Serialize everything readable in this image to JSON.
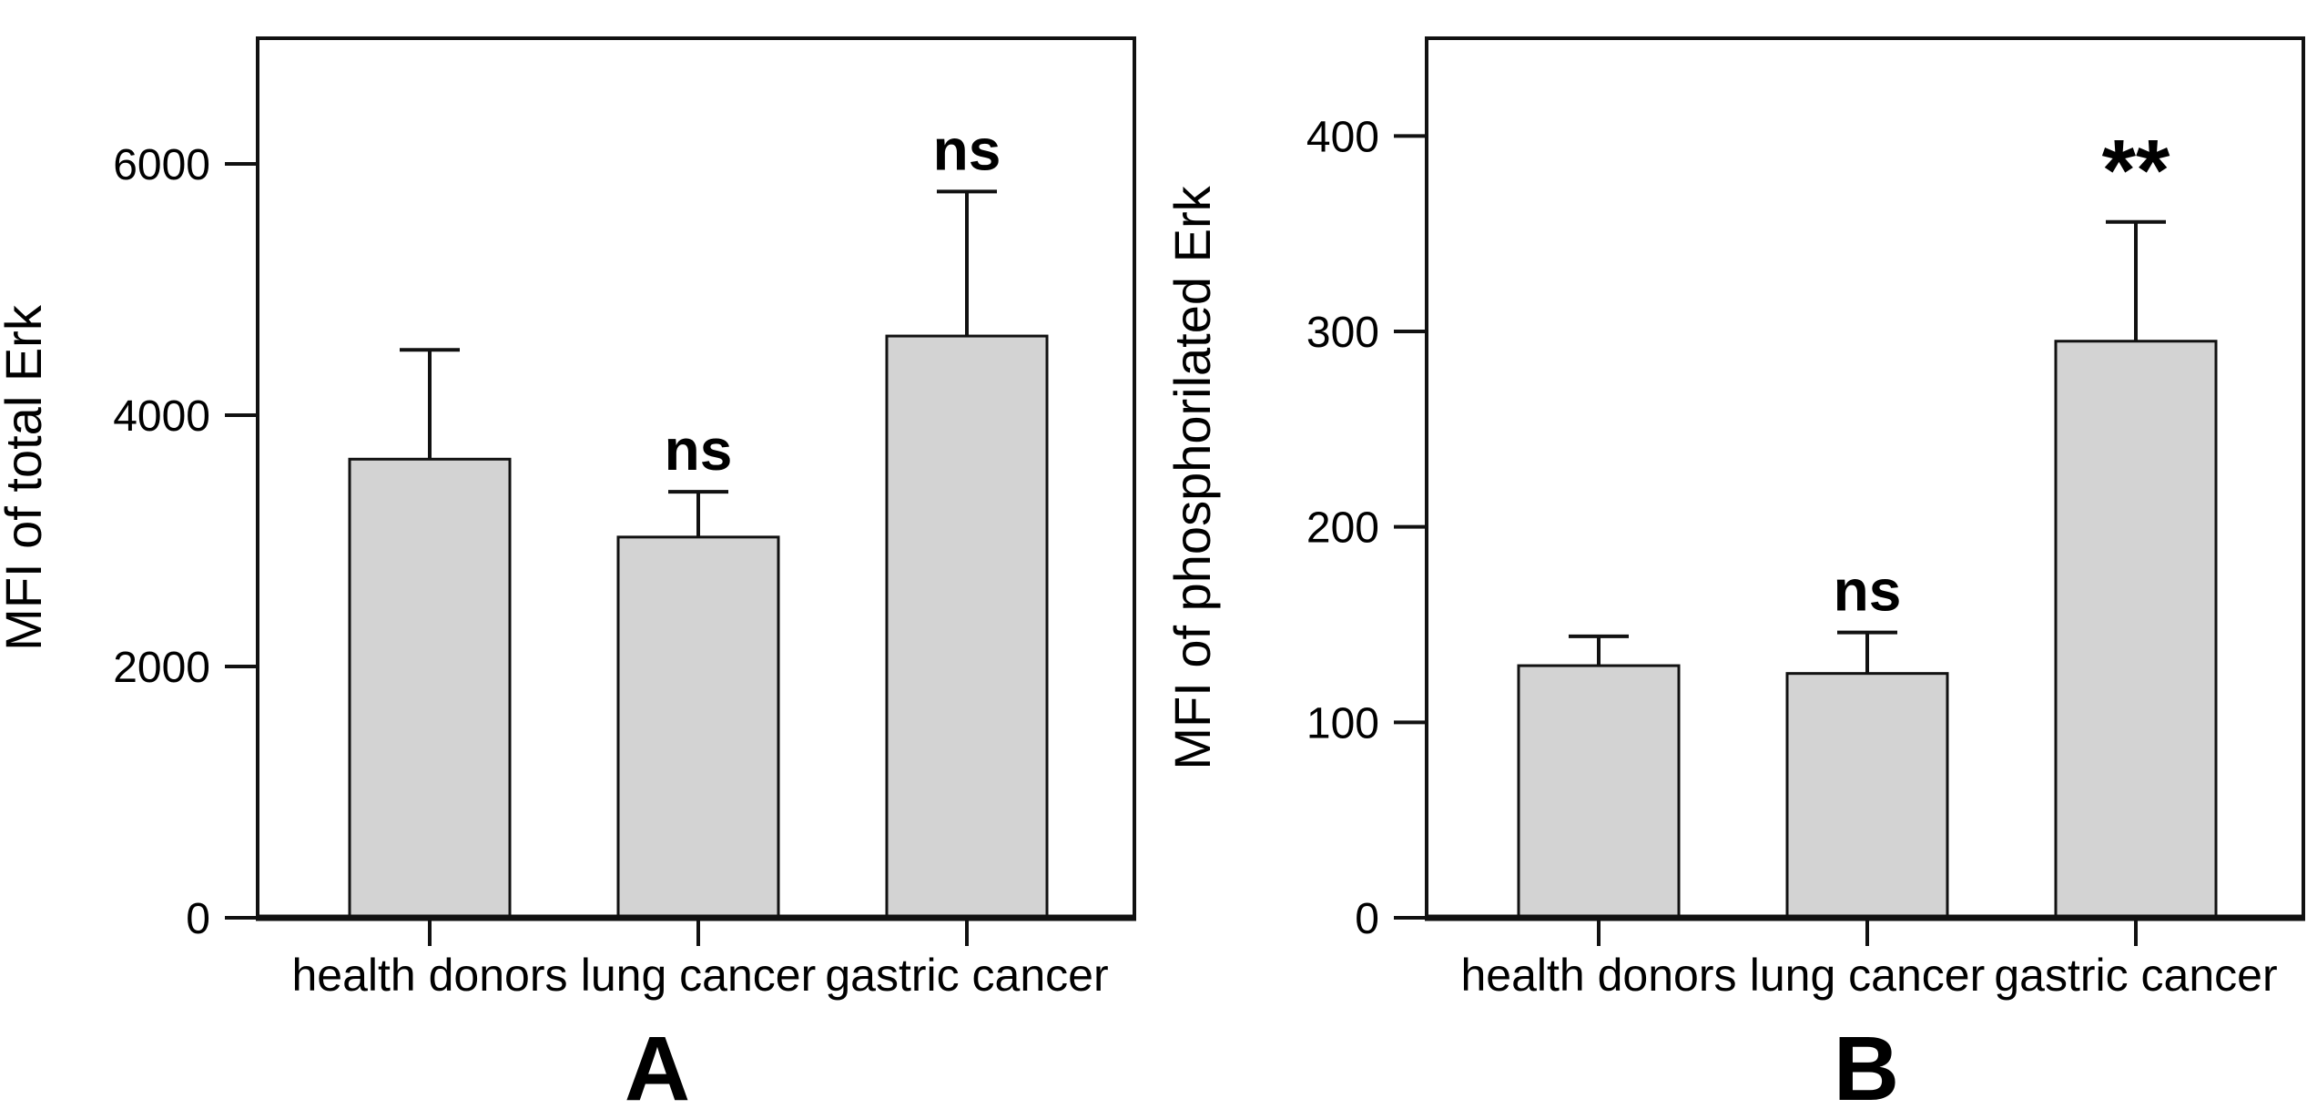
{
  "figure": {
    "background": "#ffffff",
    "line_color": "#111111",
    "text_color": "#000000",
    "bar_fill": "#d3d3d3"
  },
  "chart_data": [
    {
      "type": "bar",
      "panel_label": "A",
      "title": "",
      "xlabel": "",
      "ylabel": "MFI of total Erk",
      "categories": [
        "health donors",
        "lung cancer",
        "gastric cancer"
      ],
      "values": [
        3650,
        3030,
        4630
      ],
      "error_plus": [
        870,
        360,
        1150
      ],
      "annotations": [
        "",
        "ns",
        "ns"
      ],
      "yticks": [
        0,
        2000,
        4000,
        6000
      ],
      "ylim": [
        0,
        7000
      ],
      "grid": "off",
      "legend": "none",
      "bar_color": "#d3d3d3"
    },
    {
      "type": "bar",
      "panel_label": "B",
      "title": "",
      "xlabel": "",
      "ylabel": "MFI of phosphorilated Erk",
      "categories": [
        "health donors",
        "lung cancer",
        "gastric cancer"
      ],
      "values": [
        129,
        125,
        295
      ],
      "error_plus": [
        15,
        21,
        61
      ],
      "annotations": [
        "",
        "ns",
        "**"
      ],
      "yticks": [
        0,
        100,
        200,
        300,
        400
      ],
      "ylim": [
        0,
        450
      ],
      "grid": "off",
      "legend": "none",
      "bar_color": "#d3d3d3"
    }
  ]
}
